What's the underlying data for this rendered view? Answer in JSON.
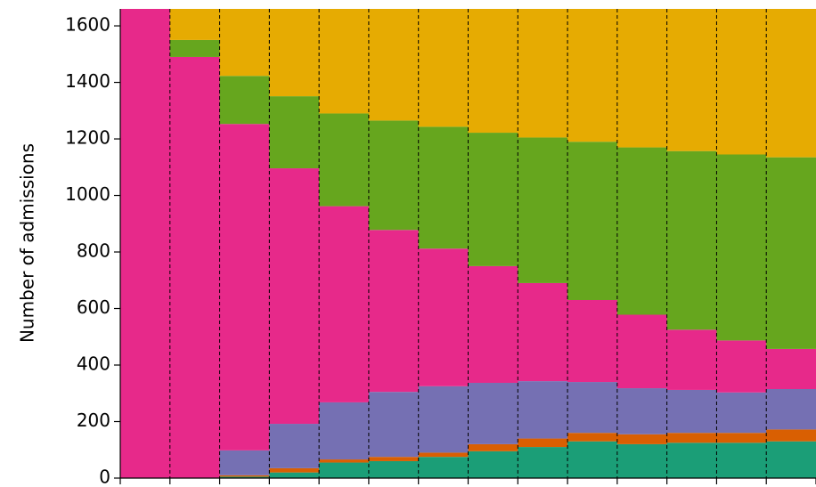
{
  "chart_data": {
    "type": "stacked-bar",
    "y_label": "Number of admissions",
    "categories": [
      null,
      null,
      null,
      null,
      null,
      null,
      null,
      null,
      null,
      null,
      null,
      null,
      null,
      null
    ],
    "series": [
      {
        "color": "#1b9e77",
        "values": [
          0,
          0,
          5,
          20,
          55,
          60,
          75,
          95,
          110,
          130,
          120,
          125,
          125,
          130
        ]
      },
      {
        "color": "#d95f02",
        "values": [
          0,
          0,
          5,
          15,
          11,
          15,
          15,
          25,
          30,
          30,
          35,
          35,
          35,
          42
        ]
      },
      {
        "color": "#7570b3",
        "values": [
          0,
          0,
          88,
          157,
          202,
          230,
          235,
          217,
          203,
          180,
          163,
          152,
          143,
          143
        ]
      },
      {
        "color": "#e7298a",
        "values": [
          1660,
          1490,
          1155,
          904,
          694,
          573,
          487,
          413,
          347,
          290,
          260,
          213,
          184,
          142
        ]
      },
      {
        "color": "#66a61e",
        "values": [
          0,
          60,
          170,
          255,
          328,
          387,
          431,
          472,
          515,
          560,
          592,
          632,
          658,
          678
        ]
      },
      {
        "color": "#e6ab02",
        "values": [
          0,
          110,
          237,
          309,
          370,
          395,
          417,
          438,
          455,
          470,
          490,
          503,
          515,
          525
        ]
      }
    ],
    "ylim": [
      0,
      1660
    ],
    "yticks": [
      0,
      200,
      400,
      600,
      800,
      1000,
      1200,
      1400,
      1600
    ]
  }
}
